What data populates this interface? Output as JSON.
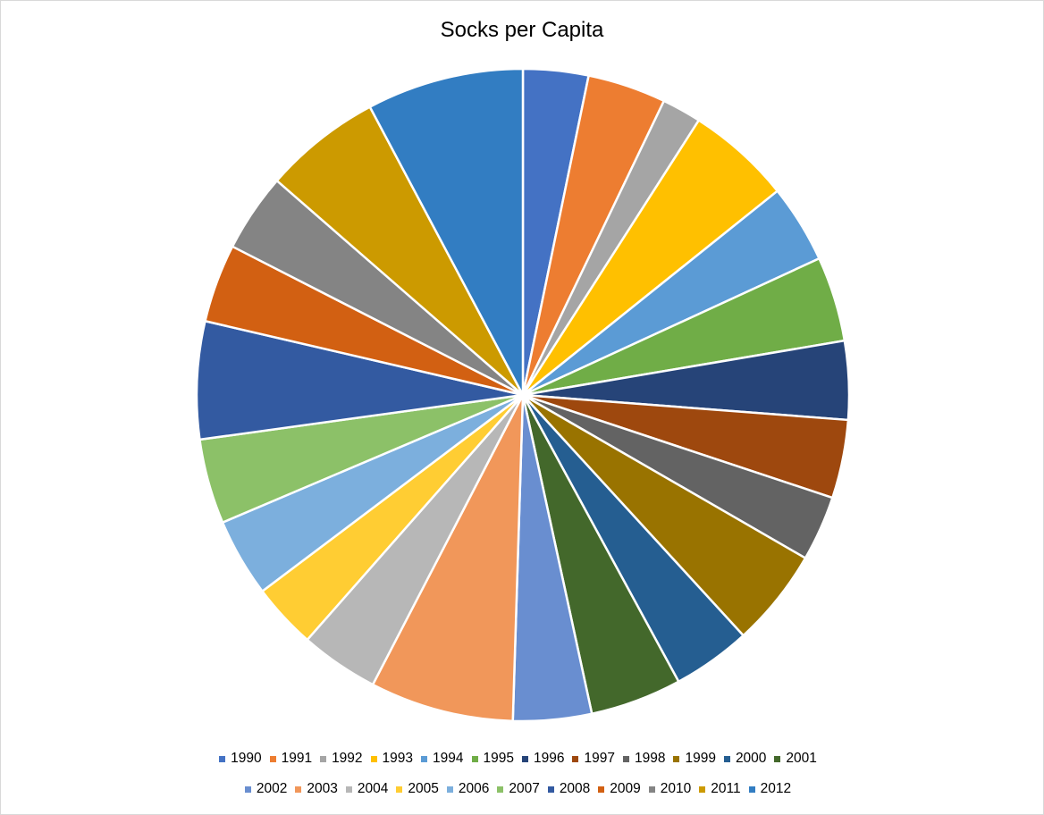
{
  "chart_data": {
    "type": "pie",
    "title": "Socks per Capita",
    "start_angle_deg": 0,
    "direction": "clockwise",
    "legend_position": "bottom",
    "categories": [
      "1990",
      "1991",
      "1992",
      "1993",
      "1994",
      "1995",
      "1996",
      "1997",
      "1998",
      "1999",
      "2000",
      "2001",
      "2002",
      "2003",
      "2004",
      "2005",
      "2006",
      "2007",
      "2008",
      "2009",
      "2010",
      "2011",
      "2012"
    ],
    "values": [
      3.42,
      4.11,
      2.06,
      5.48,
      4.11,
      4.45,
      4.11,
      4.11,
      3.42,
      5.14,
      4.11,
      4.79,
      4.11,
      7.53,
      4.11,
      3.42,
      4.11,
      4.45,
      6.16,
      4.11,
      4.11,
      6.16,
      8.22
    ],
    "colors": [
      "#4472C4",
      "#ED7D31",
      "#A5A5A5",
      "#FFC000",
      "#5B9BD5",
      "#70AD47",
      "#264478",
      "#9E480E",
      "#636363",
      "#997300",
      "#255E91",
      "#43682B",
      "#698ED0",
      "#F1975A",
      "#B7B7B7",
      "#FFCD33",
      "#7CAFDD",
      "#8CC168",
      "#335AA1",
      "#D26012",
      "#848484",
      "#CC9A00",
      "#327DC2"
    ]
  }
}
